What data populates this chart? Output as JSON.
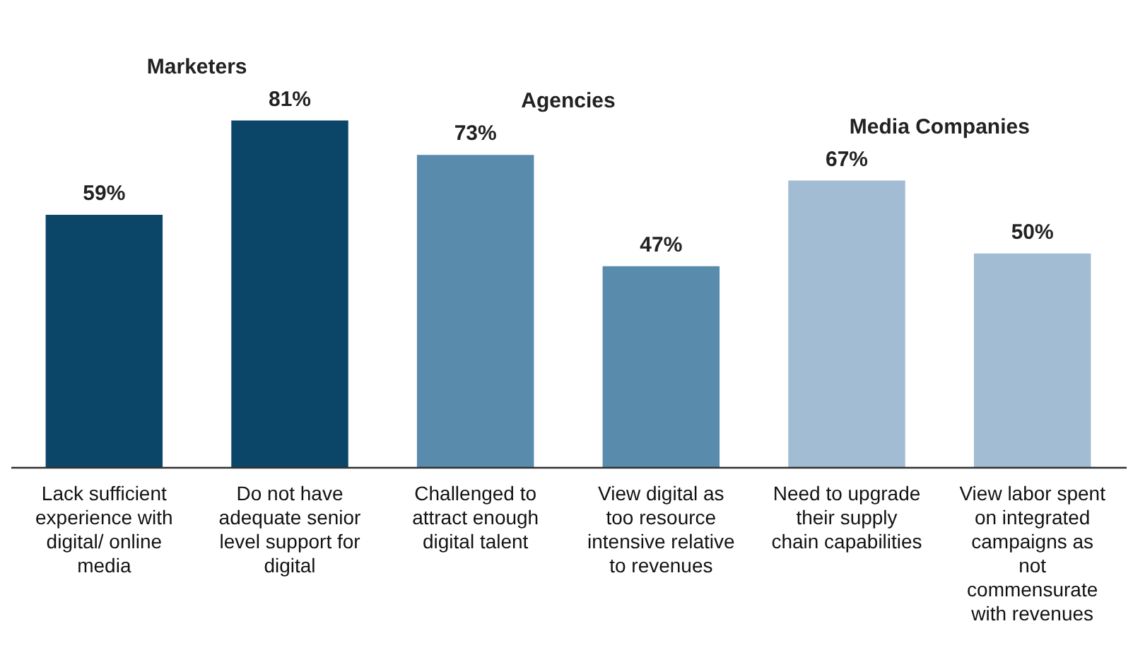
{
  "chart_data": {
    "type": "bar",
    "categories": [
      "Lack sufficient experience with digital/ online media",
      "Do not have adequate senior level support for digital",
      "Challenged to attract enough digital talent",
      "View digital as too resource intensive relative to revenues",
      "Need to upgrade their supply chain capabilities",
      "View labor spent on integrated campaigns as not commensurate with revenues"
    ],
    "series": [
      {
        "name": "Marketers",
        "color": "#0b4669",
        "values": [
          59,
          81,
          null,
          null,
          null,
          null
        ],
        "value_labels": [
          "59%",
          "81%",
          null,
          null,
          null,
          null
        ]
      },
      {
        "name": "Agencies",
        "color": "#588bac",
        "values": [
          null,
          null,
          73,
          47,
          null,
          null
        ],
        "value_labels": [
          null,
          null,
          "73%",
          "47%",
          null,
          null
        ]
      },
      {
        "name": "Media Companies",
        "color": "#a2bcd3",
        "values": [
          null,
          null,
          null,
          null,
          67,
          50
        ],
        "value_labels": [
          null,
          null,
          null,
          null,
          "67%",
          "50%"
        ]
      }
    ],
    "legend": false
  }
}
